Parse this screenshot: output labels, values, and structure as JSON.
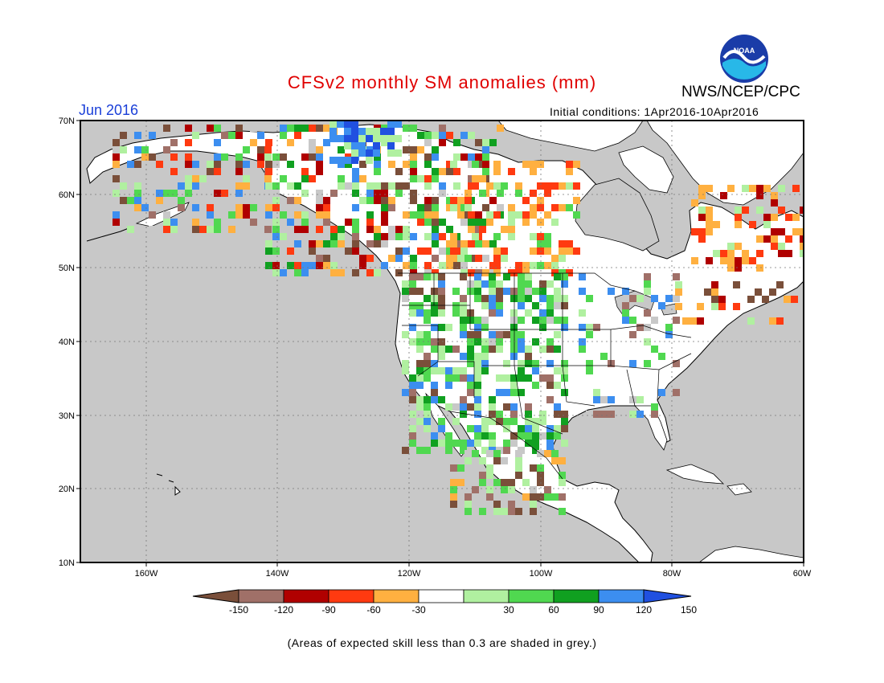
{
  "title": "CFSv2 monthly SM anomalies (mm)",
  "month_label": "Jun 2016",
  "initial_conditions": "Initial conditions: 1Apr2016-10Apr2016",
  "agency": "NWS/NCEP/CPC",
  "logo_text": "NOAA",
  "note": "(Areas of expected skill less than 0.3 are shaded in grey.)",
  "axes": {
    "lat_labels": [
      "70N",
      "60N",
      "50N",
      "40N",
      "30N",
      "20N",
      "10N"
    ],
    "lon_labels": [
      "160W",
      "140W",
      "120W",
      "100W",
      "80W",
      "60W"
    ]
  },
  "colorbar": {
    "tick_labels": [
      "-150",
      "-120",
      "-90",
      "-60",
      "-30",
      "30",
      "60",
      "90",
      "120",
      "150"
    ],
    "colors": [
      "#7a4f3a",
      "#a07068",
      "#b00000",
      "#ff3a10",
      "#ffb040",
      "#ffffff",
      "#b0f0a0",
      "#50d850",
      "#10a020",
      "#3c8ef0",
      "#2050e0"
    ]
  },
  "colors": {
    "land_no_skill": "#c8c8c8",
    "ocean": "#c8c8c8",
    "neutral": "#ffffff",
    "title": "#e00000",
    "month": "#1a3fd8"
  }
}
